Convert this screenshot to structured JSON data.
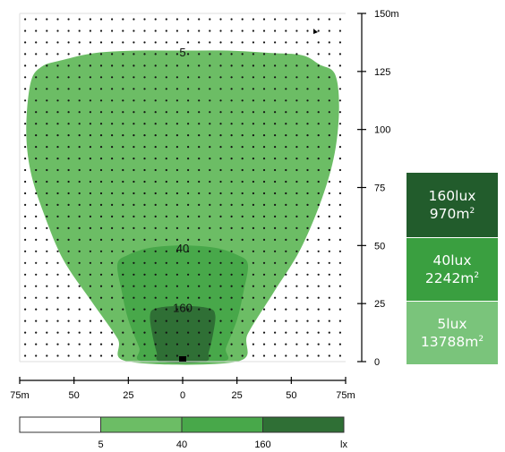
{
  "chart_data": {
    "type": "contour",
    "x_ticks": [
      "75m",
      "50",
      "25",
      "0",
      "25",
      "50",
      "75m"
    ],
    "y_ticks": [
      "0",
      "25",
      "50",
      "75",
      "100",
      "125",
      "150m"
    ],
    "xlim": [
      -75,
      75
    ],
    "ylim": [
      0,
      150
    ],
    "grid_points": true,
    "contours": [
      {
        "label": "5",
        "level": 5,
        "color": "#6cbd65",
        "polygon": [
          [
            -72,
            100
          ],
          [
            -70,
            120
          ],
          [
            -65,
            127
          ],
          [
            -55,
            130
          ],
          [
            -40,
            133
          ],
          [
            -20,
            134
          ],
          [
            0,
            134
          ],
          [
            20,
            134
          ],
          [
            40,
            133
          ],
          [
            55,
            132
          ],
          [
            63,
            128
          ],
          [
            70,
            124
          ],
          [
            72,
            110
          ],
          [
            70,
            90
          ],
          [
            64,
            70
          ],
          [
            54,
            48
          ],
          [
            42,
            30
          ],
          [
            30,
            12
          ],
          [
            25,
            0
          ],
          [
            -25,
            0
          ],
          [
            -30,
            10
          ],
          [
            -42,
            26
          ],
          [
            -55,
            44
          ],
          [
            -64,
            64
          ],
          [
            -70,
            82
          ]
        ]
      },
      {
        "label": "40",
        "level": 40,
        "color": "#48a84a",
        "polygon": [
          [
            -30,
            42
          ],
          [
            -25,
            46
          ],
          [
            -15,
            49
          ],
          [
            0,
            50
          ],
          [
            15,
            49
          ],
          [
            25,
            46
          ],
          [
            30,
            42
          ],
          [
            28,
            30
          ],
          [
            25,
            18
          ],
          [
            20,
            6
          ],
          [
            18,
            0
          ],
          [
            -18,
            0
          ],
          [
            -20,
            6
          ],
          [
            -25,
            18
          ],
          [
            -28,
            30
          ]
        ]
      },
      {
        "label": "160",
        "level": 160,
        "color": "#2f6f35",
        "polygon": [
          [
            -15,
            20
          ],
          [
            -12,
            23
          ],
          [
            0,
            24
          ],
          [
            12,
            23
          ],
          [
            15,
            20
          ],
          [
            14,
            12
          ],
          [
            12,
            4
          ],
          [
            10,
            0
          ],
          [
            -10,
            0
          ],
          [
            -12,
            4
          ],
          [
            -14,
            12
          ]
        ]
      }
    ],
    "legend": [
      {
        "lux": "160lux",
        "area": "970m",
        "color": "#225c2c"
      },
      {
        "lux": "40lux",
        "area": "2242m",
        "color": "#3a9f40"
      },
      {
        "lux": "5lux",
        "area": "13788m",
        "color": "#7ac47b"
      }
    ],
    "area_unit_sup": "2",
    "scale_bar": {
      "labels": [
        "5",
        "40",
        "160"
      ],
      "unit": "lx",
      "colors": [
        "#ffffff",
        "#6cbd65",
        "#48a84a",
        "#2f6f35"
      ]
    }
  }
}
